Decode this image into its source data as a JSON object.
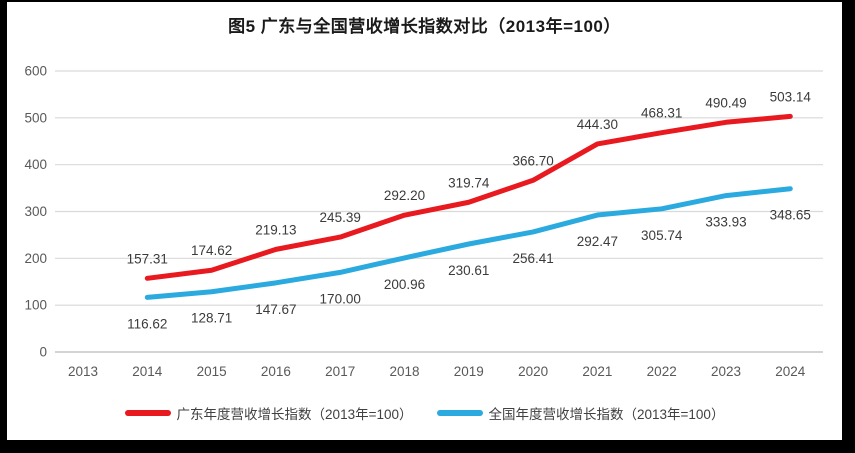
{
  "title": "图5  广东与全国营收增长指数对比（2013年=100）",
  "chart_data": {
    "type": "line",
    "title": "图5  广东与全国营收增长指数对比（2013年=100）",
    "categories": [
      "2013",
      "2014",
      "2015",
      "2016",
      "2017",
      "2018",
      "2019",
      "2020",
      "2021",
      "2022",
      "2023",
      "2024"
    ],
    "series": [
      {
        "name": "广东年度营收增长指数（2013年=100）",
        "color": "#e8191f",
        "label_position": "above",
        "values": [
          null,
          157.31,
          174.62,
          219.13,
          245.39,
          292.2,
          319.74,
          366.7,
          444.3,
          468.31,
          490.49,
          503.14
        ]
      },
      {
        "name": "全国年度营收增长指数（2013年=100）",
        "color": "#2baadf",
        "label_position": "below",
        "values": [
          null,
          116.62,
          128.71,
          147.67,
          170.0,
          200.96,
          230.61,
          256.41,
          292.47,
          305.74,
          333.93,
          348.65
        ]
      }
    ],
    "ylim": [
      0,
      600
    ],
    "yticks": [
      0,
      100,
      200,
      300,
      400,
      500,
      600
    ],
    "grid": true,
    "legend_position": "bottom",
    "data_labels": true,
    "data_label_decimals": 2,
    "colors": {
      "grid": "#d9d9d9",
      "axis": "#c6c6c6",
      "tick_label": "#595959",
      "data_label": "#3b3b3b",
      "title": "#1a1a1a",
      "frame": "#000000",
      "background": "#ffffff"
    }
  }
}
